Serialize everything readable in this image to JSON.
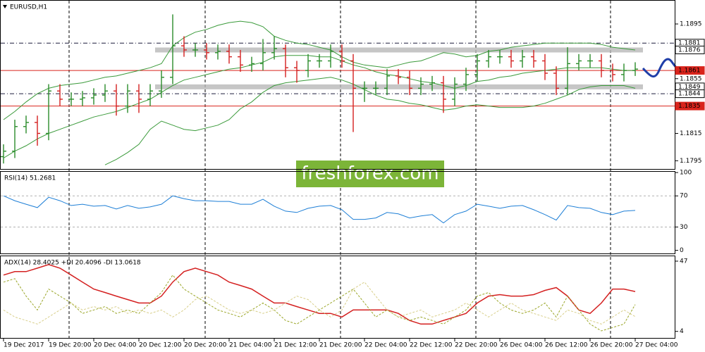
{
  "chart_data": [
    {
      "type": "candlestick",
      "title": "EURUSD,H1",
      "categories": [
        "19 Dec 2017",
        null,
        null,
        null,
        "19 Dec 20:00",
        null,
        null,
        null,
        "20 Dec 04:00",
        null,
        null,
        null,
        "20 Dec 12:00",
        null,
        null,
        null,
        "20 Dec 20:00",
        null,
        null,
        null,
        "21 Dec 04:00",
        null,
        null,
        null,
        "21 Dec 12:00",
        null,
        null,
        null,
        "21 Dec 20:00",
        null,
        null,
        null,
        "22 Dec 04:00",
        null,
        null,
        null,
        "22 Dec 12:00",
        null,
        null,
        null,
        "22 Dec 20:00",
        null,
        null,
        null,
        "26 Dec 04:00",
        null,
        null,
        null,
        "26 Dec 12:00",
        null,
        null,
        null,
        "26 Dec 20:00",
        null,
        null,
        null,
        "27 Dec 04:00"
      ],
      "open": [
        1.1798,
        1.1802,
        1.182,
        1.1823,
        1.1815,
        1.1846,
        1.184,
        1.184,
        1.1841,
        1.1843,
        1.1846,
        1.1835,
        1.1846,
        1.184,
        1.1846,
        1.1856,
        1.1879,
        1.1876,
        1.1876,
        1.1874,
        1.1875,
        1.1871,
        1.1865,
        1.1866,
        1.1874,
        1.1877,
        1.1863,
        1.1861,
        1.1868,
        1.1868,
        1.1875,
        1.1868,
        1.1848,
        1.1848,
        1.1848,
        1.1857,
        1.1856,
        1.1848,
        1.1851,
        1.1852,
        1.184,
        1.1851,
        1.1858,
        1.1868,
        1.1871,
        1.1871,
        1.1868,
        1.1871,
        1.1868,
        1.1859,
        1.1848,
        1.1866,
        1.1868,
        1.1868,
        1.1861,
        1.1858,
        1.1861
      ],
      "high": [
        1.1807,
        1.1825,
        1.1828,
        1.1828,
        1.1851,
        1.1851,
        1.1845,
        1.1846,
        1.1848,
        1.1851,
        1.1851,
        1.1851,
        1.1851,
        1.1851,
        1.1861,
        1.1902,
        1.1886,
        1.1881,
        1.1881,
        1.188,
        1.188,
        1.1876,
        1.1871,
        1.1884,
        1.1886,
        1.188,
        1.1868,
        1.1873,
        1.1873,
        1.188,
        1.188,
        1.1873,
        1.1853,
        1.1853,
        1.1862,
        1.1862,
        1.1861,
        1.1856,
        1.1857,
        1.1857,
        1.1856,
        1.1863,
        1.1873,
        1.1876,
        1.1876,
        1.1876,
        1.1876,
        1.1876,
        1.1873,
        1.1864,
        1.1878,
        1.1873,
        1.1873,
        1.1873,
        1.1866,
        1.1866,
        1.1867
      ],
      "low": [
        1.1793,
        1.1797,
        1.1815,
        1.1806,
        1.181,
        1.1835,
        1.1835,
        1.1835,
        1.1836,
        1.1838,
        1.1828,
        1.183,
        1.183,
        1.1835,
        1.1841,
        1.1851,
        1.1871,
        1.1871,
        1.1869,
        1.1869,
        1.1866,
        1.186,
        1.186,
        1.1861,
        1.1869,
        1.1856,
        1.1852,
        1.1856,
        1.1863,
        1.1863,
        1.1863,
        1.1816,
        1.1838,
        1.1843,
        1.1843,
        1.1851,
        1.1843,
        1.1843,
        1.1846,
        1.183,
        1.1835,
        1.1846,
        1.1853,
        1.1863,
        1.1866,
        1.1863,
        1.1863,
        1.1863,
        1.1854,
        1.1843,
        1.1843,
        1.1861,
        1.1863,
        1.1856,
        1.1853,
        1.1853,
        1.1857
      ],
      "close": [
        1.1802,
        1.182,
        1.1823,
        1.1815,
        1.1846,
        1.184,
        1.184,
        1.1841,
        1.1843,
        1.1846,
        1.1835,
        1.1846,
        1.184,
        1.1846,
        1.1856,
        1.1879,
        1.1876,
        1.1876,
        1.1874,
        1.1875,
        1.1871,
        1.1865,
        1.1866,
        1.1874,
        1.1877,
        1.1863,
        1.1861,
        1.1868,
        1.1868,
        1.1875,
        1.1868,
        1.1848,
        1.1848,
        1.1848,
        1.1857,
        1.1856,
        1.1848,
        1.1851,
        1.1852,
        1.184,
        1.1851,
        1.1858,
        1.1868,
        1.1871,
        1.1871,
        1.1868,
        1.1871,
        1.1868,
        1.1859,
        1.1848,
        1.1866,
        1.1868,
        1.1868,
        1.1861,
        1.1858,
        1.1861,
        1.1862
      ],
      "up_color": "#2a8c2a",
      "down_color": "#d42020",
      "series": [
        {
          "color": "#3a9a3a",
          "values": [
            1.1825,
            1.1831,
            1.1838,
            1.1844,
            1.1848,
            1.185,
            1.1851,
            1.1852,
            1.1854,
            1.1856,
            1.1857,
            1.1859,
            1.1861,
            1.1863,
            1.1866,
            1.1879,
            1.1885,
            1.1889,
            1.1891,
            1.1894,
            1.1896,
            1.1897,
            1.1896,
            1.1893,
            1.1886,
            1.1883,
            1.1881,
            1.188,
            1.1878,
            1.1876,
            1.1871,
            1.1867,
            1.1865,
            1.1864,
            1.1863,
            1.1865,
            1.1867,
            1.1868,
            1.1871,
            1.1874,
            1.1873,
            1.1871,
            1.1872,
            1.1875,
            1.1876,
            1.1878,
            1.1879,
            1.188,
            1.1881,
            1.1881,
            1.1881,
            1.1881,
            1.1881,
            1.188,
            1.1878,
            1.1877,
            1.1876
          ]
        },
        {
          "color": "#3a9a3a",
          "values": [
            1.1797,
            1.1802,
            1.1806,
            1.1811,
            1.1815,
            1.1818,
            1.1821,
            1.1824,
            1.1827,
            1.1829,
            1.1831,
            1.1834,
            1.1837,
            1.184,
            1.1845,
            1.185,
            1.1854,
            1.1856,
            1.1858,
            1.186,
            1.1862,
            1.1863,
            1.1865,
            1.1867,
            1.1871,
            1.1872,
            1.1872,
            1.1872,
            1.1871,
            1.1871,
            1.1868,
            1.1865,
            1.1863,
            1.186,
            1.1858,
            1.1857,
            1.1855,
            1.1853,
            1.1852,
            1.185,
            1.1848,
            1.185,
            1.1853,
            1.1854,
            1.1856,
            1.1857,
            1.1859,
            1.186,
            1.1861,
            1.1862,
            1.1863,
            1.1863,
            1.1863,
            1.1863,
            1.1862,
            1.1861,
            1.1861
          ]
        },
        {
          "color": "#3a9a3a",
          "values": [
            null,
            null,
            null,
            null,
            null,
            null,
            null,
            null,
            null,
            1.1792,
            1.1796,
            1.1801,
            1.1807,
            1.1818,
            1.1824,
            1.1821,
            1.1818,
            1.1817,
            1.1819,
            1.1821,
            1.1825,
            1.1833,
            1.1838,
            1.1845,
            1.185,
            1.1852,
            1.1853,
            1.1854,
            1.1855,
            1.1856,
            1.1854,
            1.1851,
            1.1847,
            1.1843,
            1.184,
            1.1839,
            1.1837,
            1.1836,
            1.1834,
            1.1832,
            1.1833,
            1.1835,
            1.1836,
            1.1835,
            1.1834,
            1.1834,
            1.1834,
            1.1835,
            1.1837,
            1.184,
            1.1843,
            1.1847,
            1.1849,
            1.185,
            1.185,
            1.185,
            1.1848
          ]
        }
      ],
      "ylim": [
        1.1789,
        1.1912
      ],
      "yticks": [
        1.1895,
        1.1855,
        1.1815,
        1.1795
      ],
      "levels": [
        {
          "value": 1.1881,
          "color": "#1c1c3c",
          "style": "dashdot"
        },
        {
          "value": 1.1876,
          "color": "#b8b8b8",
          "style": "band"
        },
        {
          "value": 1.1861,
          "color": "#d9241c",
          "style": "solid"
        },
        {
          "value": 1.1849,
          "color": "#b8b8b8",
          "style": "band"
        },
        {
          "value": 1.1844,
          "color": "#1c1c3c",
          "style": "dashdot"
        },
        {
          "value": 1.1835,
          "color": "#d9241c",
          "style": "solid"
        }
      ]
    },
    {
      "type": "line",
      "title": "RSI(14) 51.2681",
      "series": [
        {
          "color": "#1e7fd6",
          "values": [
            70,
            63.8,
            59.3,
            54.9,
            68.2,
            63.8,
            57.6,
            59.3,
            56.7,
            57.6,
            53.1,
            57.6,
            54,
            55.8,
            59.3,
            70,
            66.4,
            63.8,
            63.8,
            62.9,
            62.9,
            59.3,
            59.3,
            65.6,
            56.7,
            50.4,
            48.7,
            54,
            56.7,
            57.6,
            52.2,
            39.8,
            39.8,
            41.6,
            48.7,
            46.9,
            41.6,
            44.2,
            46,
            35.3,
            46,
            50.4,
            59.3,
            56.7,
            54,
            56.7,
            57.6,
            52.2,
            46,
            38.9,
            57.6,
            54.9,
            54,
            48.7,
            46,
            50.4,
            51.2681
          ]
        }
      ],
      "ylim": [
        -4,
        101
      ],
      "yticks": [
        100,
        70,
        30,
        0
      ],
      "levels": [
        {
          "value": 70,
          "color": "#b0b0b0",
          "style": "dash"
        },
        {
          "value": 30,
          "color": "#b0b0b0",
          "style": "dash"
        }
      ]
    },
    {
      "type": "line",
      "title": "ADX(14) 28.4025 +DI 20.4096 -DI 13.0618",
      "series": [
        {
          "color": "#d42020",
          "dash": false,
          "values": [
            38.5,
            40.6,
            40.6,
            42.7,
            44.9,
            42.7,
            38.5,
            34.2,
            29.9,
            27.8,
            25.6,
            23.5,
            21.4,
            21.4,
            25.6,
            34.2,
            40.6,
            42.7,
            40.6,
            38.5,
            34.2,
            32.1,
            29.9,
            25.6,
            21.4,
            21.4,
            19.2,
            17.1,
            15,
            15,
            12.8,
            17.1,
            17.1,
            17.1,
            17.1,
            15,
            10.7,
            8.5,
            8.5,
            10.7,
            12.8,
            15,
            21.4,
            25.6,
            26.5,
            25.6,
            25.6,
            26.5,
            29.1,
            30.8,
            25.6,
            17.1,
            15,
            21.4,
            29.9,
            29.9,
            28.4025
          ]
        },
        {
          "color": "#9aa628",
          "dash": true,
          "values": [
            34.2,
            36.3,
            25.6,
            17.1,
            29.9,
            25.6,
            21.4,
            15,
            17.1,
            19.2,
            15,
            17.1,
            15,
            21.4,
            27.8,
            38.5,
            29.9,
            25.6,
            21.4,
            17.1,
            15,
            12.8,
            17.1,
            21.4,
            17.1,
            10.7,
            8.5,
            12.8,
            17.1,
            21.4,
            25.6,
            29.9,
            21.4,
            12.8,
            17.1,
            12.8,
            10.7,
            12.8,
            10.7,
            8.5,
            12.8,
            17.1,
            25.6,
            27.8,
            21.4,
            17.1,
            15,
            17.1,
            21.4,
            12.8,
            25.6,
            17.1,
            8.5,
            4.3,
            6.4,
            8.5,
            20.4096
          ]
        },
        {
          "color": "#d8cf8a",
          "dash": true,
          "values": [
            17.1,
            12.8,
            10.7,
            8.5,
            12.8,
            17.1,
            21.4,
            17.1,
            19.2,
            17.1,
            19.2,
            15,
            17.1,
            15,
            17.1,
            12.8,
            17.1,
            23.5,
            25.6,
            21.4,
            17.1,
            15,
            17.1,
            15,
            17.1,
            21.4,
            25.6,
            23.5,
            17.1,
            12.8,
            17.1,
            29.9,
            34.2,
            25.6,
            17.1,
            12.8,
            15,
            17.1,
            12.8,
            15,
            17.1,
            21.4,
            17.1,
            12.8,
            17.1,
            21.4,
            17.1,
            15,
            12.8,
            10.7,
            17.1,
            15,
            10.7,
            8.5,
            12.8,
            17.1,
            13.0618
          ]
        }
      ],
      "ylim": [
        0,
        50
      ],
      "yticks": [
        47,
        4
      ]
    }
  ],
  "watermark": "freshforex.com"
}
